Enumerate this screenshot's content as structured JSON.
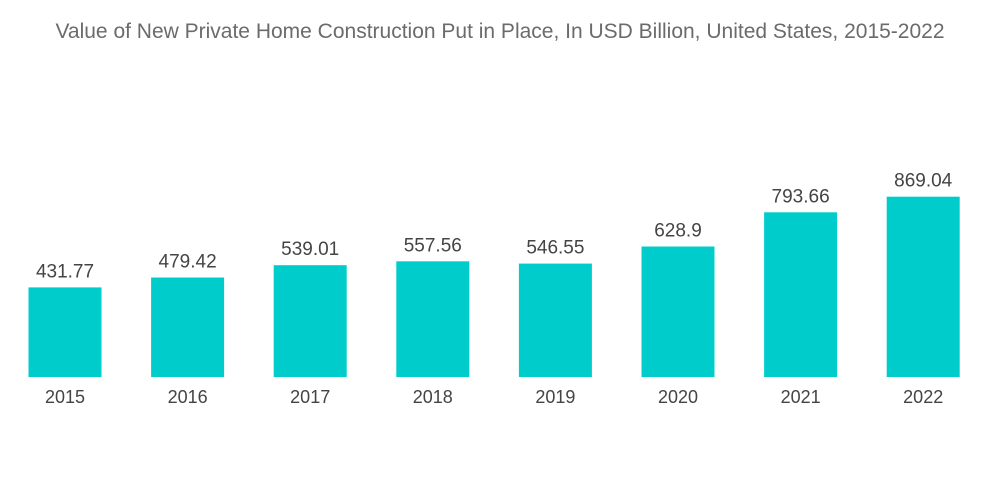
{
  "chart_data": {
    "type": "bar",
    "title": "Value of New Private Home Construction Put in Place, In USD Billion, United States, 2015-2022",
    "categories": [
      "2015",
      "2016",
      "2017",
      "2018",
      "2019",
      "2020",
      "2021",
      "2022"
    ],
    "values": [
      431.77,
      479.42,
      539.01,
      557.56,
      546.55,
      628.9,
      793.66,
      869.04
    ],
    "value_labels": [
      "431.77",
      "479.42",
      "539.01",
      "557.56",
      "546.55",
      "628.9",
      "793.66",
      "869.04"
    ],
    "xlabel": "",
    "ylabel": "",
    "ylim": [
      0,
      1000
    ],
    "grid": false,
    "legend": "none",
    "bar_color": "#00cccc"
  }
}
